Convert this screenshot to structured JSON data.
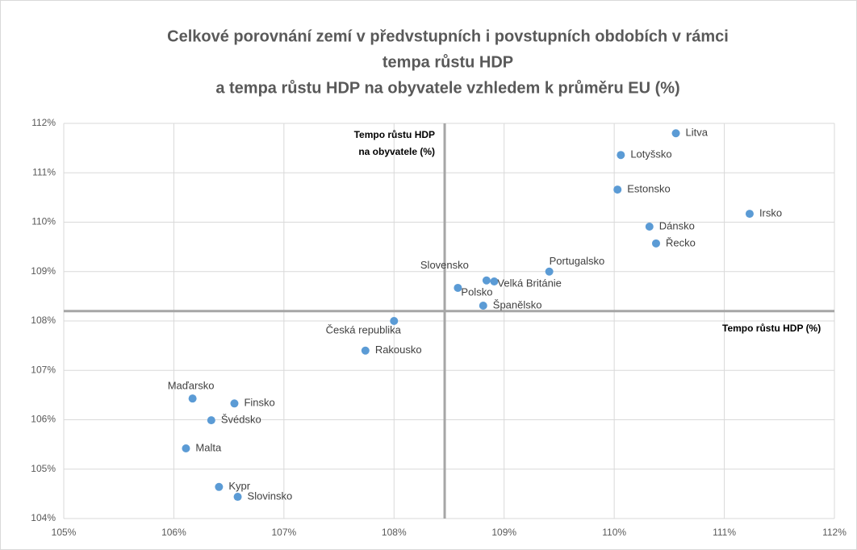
{
  "chart_data": {
    "type": "scatter",
    "title": [
      "Celkové porovnání zemí v předvstupních i povstupních obdobích v rámci",
      "tempa růstu HDP",
      "a tempa růstu HDP na obyvatele vzhledem k průměru EU (%)"
    ],
    "point_labels": [
      "Litva",
      "Lotyšsko",
      "Estonsko",
      "Irsko",
      "Dánsko",
      "Řecko",
      "Portugalsko",
      "Slovensko",
      "Velká Británie",
      "Polsko",
      "Španělsko",
      "Česká republika",
      "Rakousko",
      "Maďarsko",
      "Finsko",
      "Švédsko",
      "Malta",
      "Kypr",
      "Slovinsko"
    ],
    "x": [
      110.56,
      110.06,
      110.03,
      111.23,
      110.32,
      110.38,
      109.41,
      108.84,
      108.91,
      108.58,
      108.81,
      108.0,
      107.74,
      106.17,
      106.55,
      106.34,
      106.11,
      106.41,
      106.58
    ],
    "values": [
      111.8,
      111.36,
      110.66,
      110.17,
      109.91,
      109.57,
      109.0,
      108.82,
      108.8,
      108.67,
      108.31,
      108.0,
      107.4,
      106.43,
      106.33,
      105.99,
      105.42,
      104.64,
      104.44
    ],
    "color": "#5b9bd5",
    "xlim": [
      105,
      112
    ],
    "ylim": [
      104,
      112
    ],
    "xticks": [
      {
        "value": 105,
        "label": "105%"
      },
      {
        "value": 106,
        "label": "106%"
      },
      {
        "value": 107,
        "label": "107%"
      },
      {
        "value": 108,
        "label": "108%"
      },
      {
        "value": 109,
        "label": "109%"
      },
      {
        "value": 110,
        "label": "110%"
      },
      {
        "value": 111,
        "label": "111%"
      },
      {
        "value": 112,
        "label": "112%"
      }
    ],
    "yticks": [
      {
        "value": 104,
        "label": "104%"
      },
      {
        "value": 105,
        "label": "105%"
      },
      {
        "value": 106,
        "label": "106%"
      },
      {
        "value": 107,
        "label": "107%"
      },
      {
        "value": 108,
        "label": "108%"
      },
      {
        "value": 109,
        "label": "109%"
      },
      {
        "value": 110,
        "label": "110%"
      },
      {
        "value": 111,
        "label": "111%"
      },
      {
        "value": 112,
        "label": "112%"
      }
    ],
    "ref_x": 108.46,
    "ref_y": 108.2,
    "ref_x_label": [
      "Tempo růstu HDP",
      "na obyvatele (%)"
    ],
    "ref_y_label": "Tempo růstu HDP (%)",
    "grid": true
  }
}
